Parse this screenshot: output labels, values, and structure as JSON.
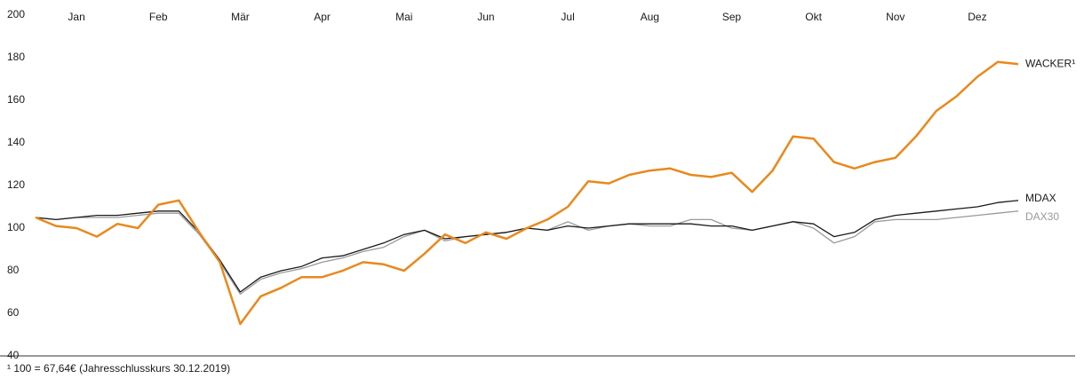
{
  "chart_data": {
    "type": "line",
    "months": [
      "Jan",
      "Feb",
      "Mär",
      "Apr",
      "Mai",
      "Jun",
      "Jul",
      "Aug",
      "Sep",
      "Okt",
      "Nov",
      "Dez"
    ],
    "series": [
      {
        "name": "WACKER¹",
        "color": "#e8891d",
        "values": [
          105,
          101,
          100,
          96,
          102,
          100,
          111,
          113,
          98,
          84,
          55,
          68,
          72,
          77,
          77,
          80,
          84,
          83,
          80,
          88,
          97,
          93,
          98,
          95,
          100,
          104,
          110,
          122,
          121,
          125,
          127,
          128,
          125,
          124,
          126,
          117,
          127,
          143,
          142,
          131,
          128,
          131,
          133,
          143,
          155,
          162,
          171,
          178,
          177
        ]
      },
      {
        "name": "MDAX",
        "color": "#1a1a1a",
        "values": [
          105,
          104,
          105,
          106,
          106,
          107,
          108,
          108,
          98,
          85,
          70,
          77,
          80,
          82,
          86,
          87,
          90,
          93,
          97,
          99,
          95,
          96,
          97,
          98,
          100,
          99,
          101,
          100,
          101,
          102,
          102,
          102,
          102,
          101,
          101,
          99,
          101,
          103,
          102,
          96,
          98,
          104,
          106,
          107,
          108,
          109,
          110,
          112,
          113
        ]
      },
      {
        "name": "DAX30",
        "color": "#999999",
        "values": [
          105,
          104,
          105,
          105,
          105,
          106,
          107,
          107,
          97,
          84,
          69,
          76,
          79,
          81,
          84,
          86,
          89,
          91,
          96,
          99,
          94,
          96,
          97,
          98,
          100,
          99,
          103,
          99,
          101,
          102,
          101,
          101,
          104,
          104,
          100,
          99,
          101,
          103,
          100,
          93,
          96,
          103,
          104,
          104,
          104,
          105,
          106,
          107,
          108
        ]
      }
    ],
    "ylim": [
      40,
      200
    ],
    "yticks": [
      40,
      60,
      80,
      100,
      120,
      140,
      160,
      180,
      200
    ],
    "footnote": "¹ 100 = 67,64€ (Jahresschlusskurs 30.12.2019)"
  }
}
